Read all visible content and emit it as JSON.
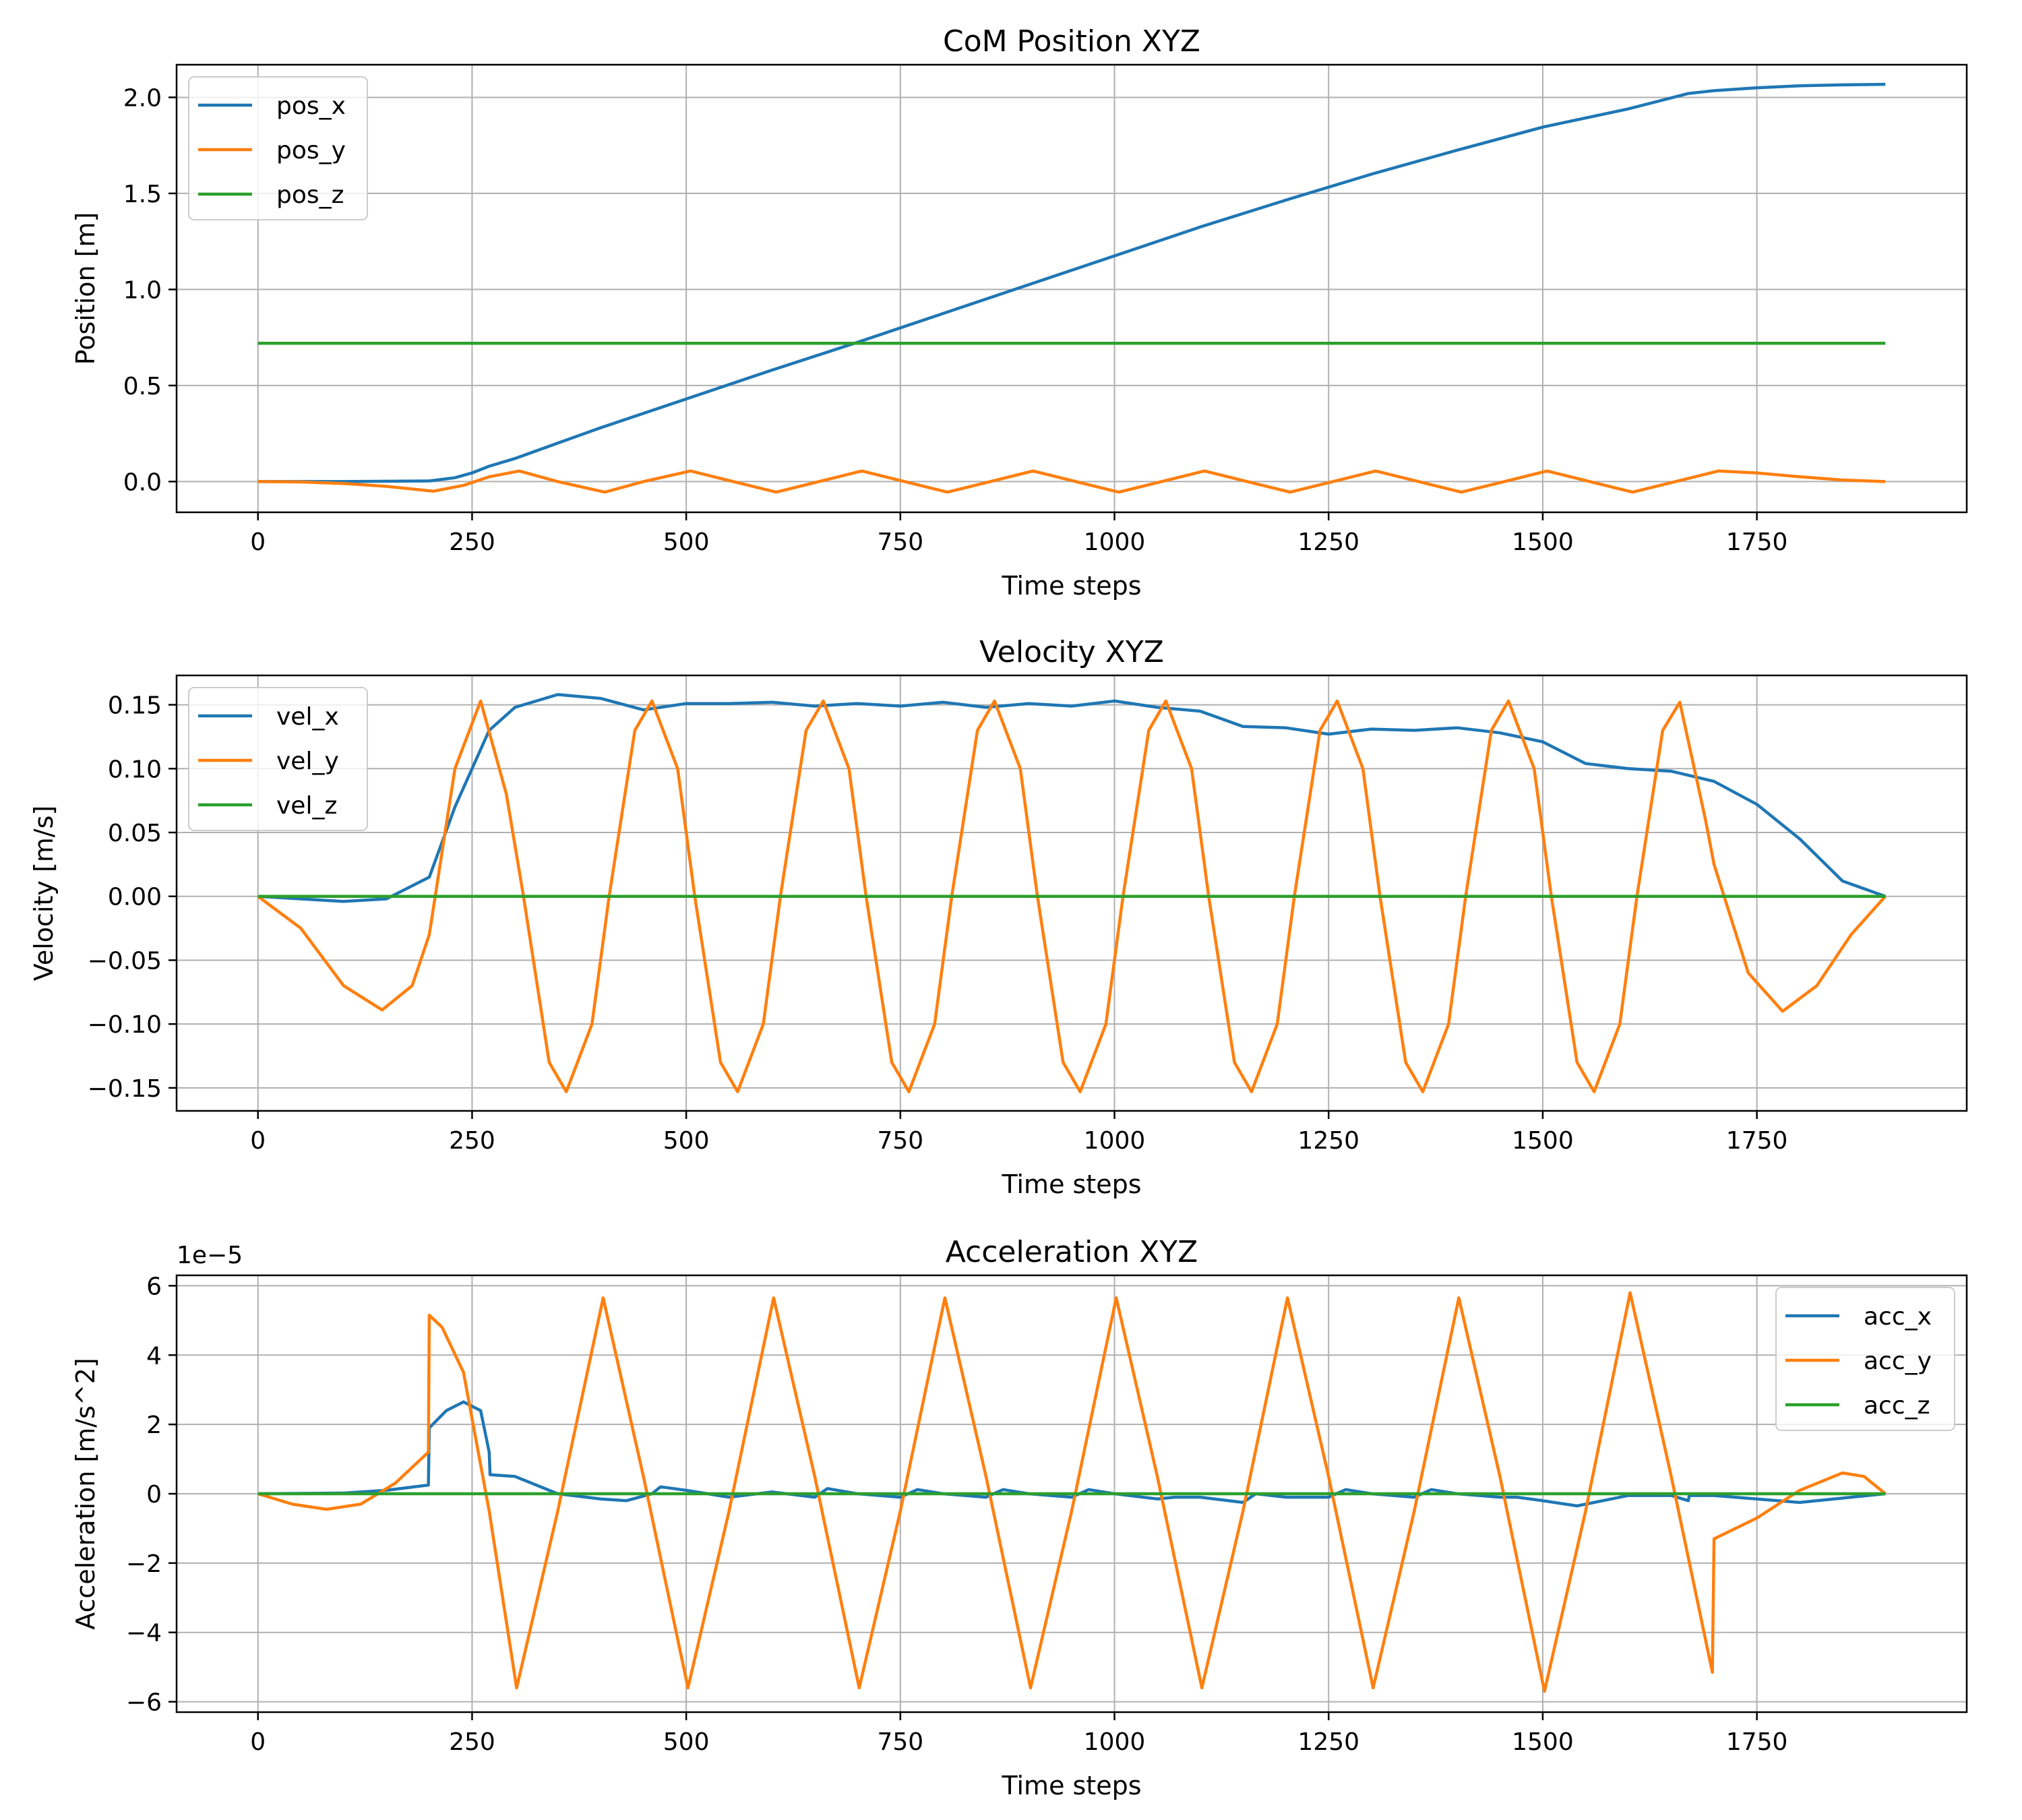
{
  "chart_data": [
    {
      "type": "line",
      "title": "CoM Position XYZ",
      "xlabel": "Time steps",
      "ylabel": "Position [m]",
      "xlim": [
        -95,
        1995
      ],
      "ylim": [
        -0.16,
        2.17
      ],
      "xticks": [
        0,
        250,
        500,
        750,
        1000,
        1250,
        1500,
        1750
      ],
      "xtick_labels": [
        "0",
        "250",
        "500",
        "750",
        "1000",
        "1250",
        "1500",
        "1750"
      ],
      "yticks": [
        0.0,
        0.5,
        1.0,
        1.5,
        2.0
      ],
      "ytick_labels": [
        "0.0",
        "0.5",
        "1.0",
        "1.5",
        "2.0"
      ],
      "grid": true,
      "legend": "upper-left",
      "series": [
        {
          "name": "pos_x",
          "color": "#1f77b4",
          "x": [
            0,
            100,
            200,
            230,
            250,
            270,
            300,
            350,
            400,
            500,
            600,
            700,
            800,
            900,
            1000,
            1100,
            1200,
            1300,
            1400,
            1500,
            1600,
            1670,
            1700,
            1750,
            1800,
            1850,
            1900
          ],
          "y": [
            0,
            0,
            0.003,
            0.02,
            0.045,
            0.08,
            0.12,
            0.2,
            0.28,
            0.43,
            0.58,
            0.725,
            0.875,
            1.025,
            1.175,
            1.325,
            1.465,
            1.6,
            1.725,
            1.845,
            1.94,
            2.02,
            2.035,
            2.05,
            2.06,
            2.065,
            2.068
          ]
        },
        {
          "name": "pos_y",
          "color": "#ff7f0e",
          "x": [
            0,
            50,
            100,
            150,
            205,
            240,
            270,
            305,
            350,
            405,
            450,
            505,
            555,
            605,
            655,
            705,
            755,
            805,
            855,
            905,
            955,
            1005,
            1055,
            1105,
            1155,
            1205,
            1255,
            1305,
            1355,
            1405,
            1455,
            1505,
            1555,
            1605,
            1655,
            1705,
            1750,
            1800,
            1850,
            1900
          ],
          "y": [
            0,
            -0.002,
            -0.01,
            -0.025,
            -0.05,
            -0.02,
            0.025,
            0.055,
            0.0,
            -0.055,
            0.0,
            0.055,
            0.0,
            -0.055,
            0.0,
            0.055,
            0.0,
            -0.055,
            0.0,
            0.055,
            0.0,
            -0.055,
            0.0,
            0.055,
            0.0,
            -0.055,
            0.0,
            0.055,
            0.0,
            -0.055,
            0.0,
            0.055,
            0.0,
            -0.055,
            0.0,
            0.055,
            0.045,
            0.025,
            0.008,
            0
          ]
        },
        {
          "name": "pos_z",
          "color": "#2ca02c",
          "x": [
            0,
            1900
          ],
          "y": [
            0.72,
            0.72
          ]
        }
      ]
    },
    {
      "type": "line",
      "title": "Velocity XYZ",
      "xlabel": "Time steps",
      "ylabel": "Velocity [m/s]",
      "xlim": [
        -95,
        1995
      ],
      "ylim": [
        -0.168,
        0.173
      ],
      "xticks": [
        0,
        250,
        500,
        750,
        1000,
        1250,
        1500,
        1750
      ],
      "xtick_labels": [
        "0",
        "250",
        "500",
        "750",
        "1000",
        "1250",
        "1500",
        "1750"
      ],
      "yticks": [
        -0.15,
        -0.1,
        -0.05,
        0.0,
        0.05,
        0.1,
        0.15
      ],
      "ytick_labels": [
        "−0.15",
        "−0.10",
        "−0.05",
        "0.00",
        "0.05",
        "0.10",
        "0.15"
      ],
      "grid": true,
      "legend": "upper-left",
      "series": [
        {
          "name": "vel_x",
          "color": "#1f77b4",
          "x": [
            0,
            50,
            100,
            150,
            200,
            230,
            250,
            270,
            300,
            350,
            400,
            450,
            500,
            550,
            600,
            650,
            700,
            750,
            800,
            850,
            900,
            950,
            1000,
            1050,
            1100,
            1150,
            1200,
            1250,
            1300,
            1350,
            1400,
            1450,
            1500,
            1550,
            1600,
            1650,
            1700,
            1750,
            1800,
            1850,
            1900
          ],
          "y": [
            0,
            -0.002,
            -0.004,
            -0.002,
            0.015,
            0.07,
            0.1,
            0.13,
            0.148,
            0.158,
            0.155,
            0.146,
            0.151,
            0.151,
            0.152,
            0.149,
            0.151,
            0.149,
            0.152,
            0.148,
            0.151,
            0.149,
            0.153,
            0.148,
            0.145,
            0.133,
            0.132,
            0.127,
            0.131,
            0.13,
            0.132,
            0.128,
            0.121,
            0.104,
            0.1,
            0.098,
            0.09,
            0.072,
            0.045,
            0.012,
            0
          ]
        },
        {
          "name": "vel_y",
          "color": "#ff7f0e",
          "x": [
            0,
            50,
            100,
            145,
            180,
            200,
            230,
            260,
            290,
            310,
            340,
            360,
            390,
            410,
            440,
            460,
            490,
            510,
            540,
            560,
            590,
            610,
            640,
            660,
            690,
            710,
            740,
            760,
            790,
            810,
            840,
            860,
            890,
            910,
            940,
            960,
            990,
            1010,
            1040,
            1060,
            1090,
            1110,
            1140,
            1160,
            1190,
            1210,
            1240,
            1260,
            1290,
            1310,
            1340,
            1360,
            1390,
            1410,
            1440,
            1460,
            1490,
            1510,
            1540,
            1560,
            1590,
            1610,
            1640,
            1660,
            1690,
            1700,
            1740,
            1780,
            1820,
            1860,
            1900
          ],
          "y": [
            0,
            -0.025,
            -0.07,
            -0.089,
            -0.07,
            -0.03,
            0.1,
            0.153,
            0.08,
            0.0,
            -0.13,
            -0.153,
            -0.1,
            0.0,
            0.13,
            0.153,
            0.1,
            0.0,
            -0.13,
            -0.153,
            -0.1,
            0.0,
            0.13,
            0.153,
            0.1,
            0.0,
            -0.13,
            -0.153,
            -0.1,
            0.0,
            0.13,
            0.153,
            0.1,
            0.0,
            -0.13,
            -0.153,
            -0.1,
            0.0,
            0.13,
            0.153,
            0.1,
            0.0,
            -0.13,
            -0.153,
            -0.1,
            0.0,
            0.13,
            0.153,
            0.1,
            0.0,
            -0.13,
            -0.153,
            -0.1,
            0.0,
            0.13,
            0.153,
            0.1,
            0.0,
            -0.13,
            -0.153,
            -0.1,
            0.0,
            0.13,
            0.152,
            0.06,
            0.025,
            -0.06,
            -0.09,
            -0.07,
            -0.03,
            0
          ]
        },
        {
          "name": "vel_z",
          "color": "#2ca02c",
          "x": [
            0,
            1900
          ],
          "y": [
            0,
            0
          ]
        }
      ]
    },
    {
      "type": "line",
      "title": "Acceleration XYZ",
      "xlabel": "Time steps",
      "ylabel": "Acceleration [m/s^2]",
      "offset_text": "1e−5",
      "xlim": [
        -95,
        1995
      ],
      "ylim": [
        -6.3,
        6.3
      ],
      "xticks": [
        0,
        250,
        500,
        750,
        1000,
        1250,
        1500,
        1750
      ],
      "xtick_labels": [
        "0",
        "250",
        "500",
        "750",
        "1000",
        "1250",
        "1500",
        "1750"
      ],
      "yticks": [
        -6,
        -4,
        -2,
        0,
        2,
        4,
        6
      ],
      "ytick_labels": [
        "−6",
        "−4",
        "−2",
        "0",
        "2",
        "4",
        "6"
      ],
      "grid": true,
      "legend": "upper-right",
      "series": [
        {
          "name": "acc_x",
          "color": "#1f77b4",
          "x": [
            0,
            100,
            150,
            199,
            200,
            220,
            240,
            260,
            270,
            271,
            300,
            350,
            400,
            430,
            460,
            470,
            500,
            550,
            600,
            650,
            665,
            700,
            750,
            770,
            800,
            850,
            870,
            900,
            950,
            970,
            1000,
            1050,
            1070,
            1100,
            1150,
            1165,
            1200,
            1250,
            1270,
            1300,
            1350,
            1370,
            1400,
            1450,
            1470,
            1500,
            1540,
            1570,
            1600,
            1650,
            1670,
            1671,
            1700,
            1800,
            1900
          ],
          "y": [
            0,
            0.02,
            0.1,
            0.25,
            1.9,
            2.4,
            2.65,
            2.4,
            1.2,
            0.55,
            0.5,
            0.0,
            -0.15,
            -0.2,
            0.0,
            0.2,
            0.1,
            -0.1,
            0.05,
            -0.1,
            0.15,
            0.0,
            -0.1,
            0.12,
            0.0,
            -0.1,
            0.12,
            0.0,
            -0.1,
            0.12,
            0.0,
            -0.15,
            -0.1,
            -0.1,
            -0.25,
            0.0,
            -0.1,
            -0.1,
            0.12,
            0.0,
            -0.1,
            0.12,
            0.0,
            -0.1,
            -0.1,
            -0.2,
            -0.35,
            -0.2,
            -0.05,
            -0.05,
            -0.2,
            -0.05,
            -0.05,
            -0.25,
            0
          ]
        },
        {
          "name": "acc_y",
          "color": "#ff7f0e",
          "x": [
            0,
            40,
            80,
            120,
            160,
            199,
            200,
            215,
            240,
            270,
            302,
            350,
            403,
            450,
            502,
            550,
            602,
            650,
            702,
            750,
            802,
            850,
            902,
            950,
            1002,
            1050,
            1102,
            1150,
            1202,
            1250,
            1302,
            1350,
            1402,
            1450,
            1502,
            1550,
            1602,
            1650,
            1698,
            1700,
            1750,
            1800,
            1850,
            1875,
            1900
          ],
          "y": [
            0,
            -0.3,
            -0.45,
            -0.3,
            0.3,
            1.2,
            5.15,
            4.8,
            3.5,
            -0.5,
            -5.6,
            -0.5,
            5.65,
            0.5,
            -5.6,
            -0.5,
            5.65,
            0.5,
            -5.6,
            -0.5,
            5.65,
            0.5,
            -5.6,
            -0.5,
            5.65,
            0.5,
            -5.6,
            -0.5,
            5.65,
            0.5,
            -5.6,
            -0.5,
            5.65,
            0.5,
            -5.7,
            -0.5,
            5.8,
            0.5,
            -5.15,
            -1.3,
            -0.7,
            0.1,
            0.6,
            0.5,
            0
          ]
        },
        {
          "name": "acc_z",
          "color": "#2ca02c",
          "x": [
            0,
            1900
          ],
          "y": [
            0,
            0
          ]
        }
      ]
    }
  ]
}
